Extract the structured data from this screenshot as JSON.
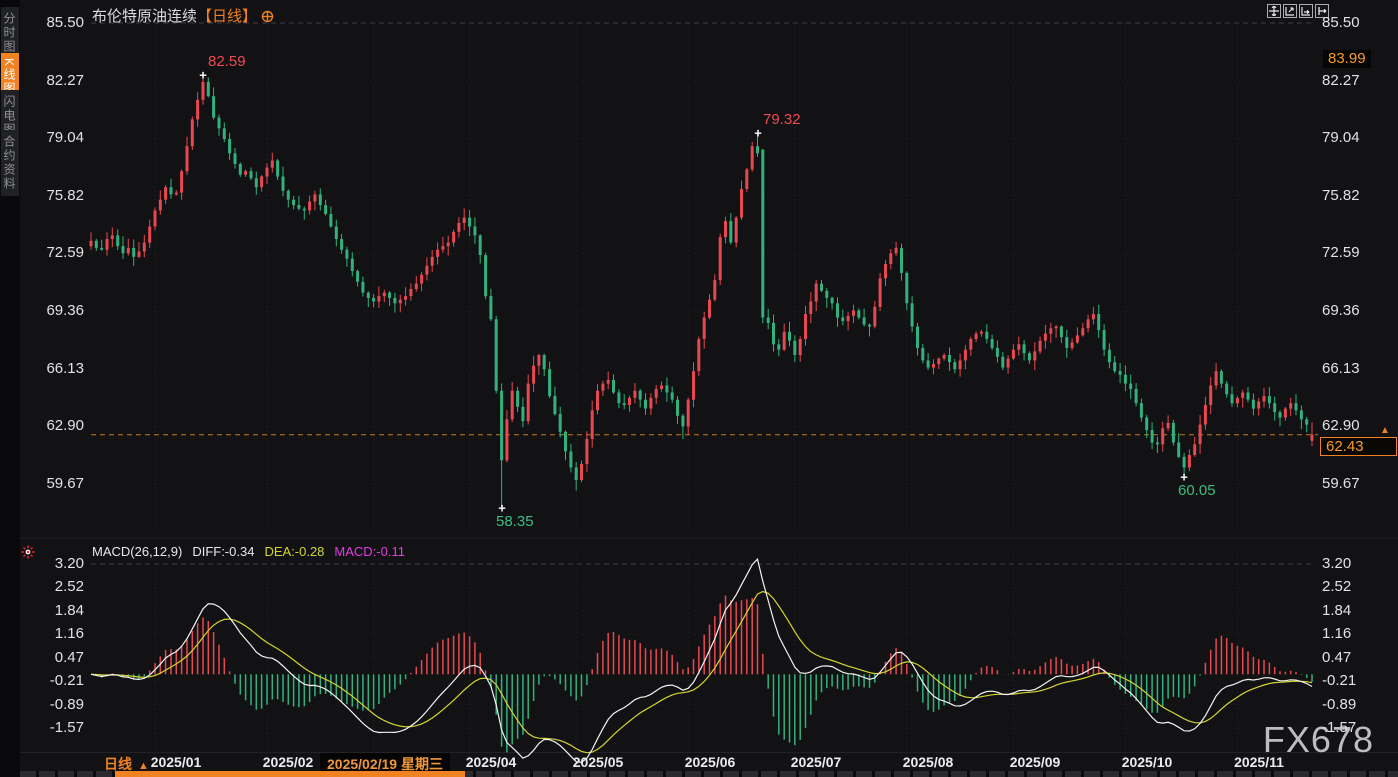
{
  "header": {
    "instrument": "布伦特原油连续",
    "period": "【日线】",
    "gear_icon": "settings-gear"
  },
  "sidebar": {
    "tabs": [
      {
        "label": "分时图",
        "active": false
      },
      {
        "label": "K线图",
        "active": true
      },
      {
        "label": "闪电图",
        "active": false
      },
      {
        "label": "合约资料",
        "active": false
      }
    ]
  },
  "toolbar_icons": [
    "crosshair",
    "zoom-y-axis",
    "zoom-x-axis",
    "pan-right"
  ],
  "macd_header": {
    "title": "MACD(26,12,9)",
    "diff": "DIFF:-0.34",
    "dea": "DEA:-0.28",
    "macd": "MACD:-0.11"
  },
  "badges": {
    "upper": "83.99",
    "last": "62.43",
    "last_arrow": "▲"
  },
  "period_selector": {
    "label": "日线",
    "arrow": "▲"
  },
  "x_axis": {
    "selected_date": "2025/02/19 星期三",
    "labels": [
      {
        "text": "2025/01",
        "day": 16
      },
      {
        "text": "2025/02",
        "day": 37
      },
      {
        "text": "2025/04",
        "day": 75
      },
      {
        "text": "2025/05",
        "day": 95
      },
      {
        "text": "2025/06",
        "day": 116
      },
      {
        "text": "2025/07",
        "day": 136
      },
      {
        "text": "2025/08",
        "day": 157
      },
      {
        "text": "2025/09",
        "day": 177
      },
      {
        "text": "2025/10",
        "day": 198
      },
      {
        "text": "2025/11",
        "day": 219
      }
    ]
  },
  "watermark": "FX678",
  "colors": {
    "up": "#e8484f",
    "down": "#31b27c",
    "accent_orange": "#f08222",
    "diff_line": "#f2f2f2",
    "dea_line": "#d4d431",
    "macd_value": "#e23be2",
    "annotation_high": "#ef4a52",
    "annotation_low": "#3dbd82",
    "last_price_line": "#c27a1a"
  },
  "chart_data": {
    "type": "candlestick",
    "title": "布伦特原油连续 日线",
    "price_axis_ticks": [
      "85.50",
      "82.27",
      "79.04",
      "75.82",
      "72.59",
      "69.36",
      "66.13",
      "62.90",
      "59.67"
    ],
    "macd_axis_ticks": [
      "3.20",
      "2.52",
      "1.84",
      "1.16",
      "0.47",
      "-0.21",
      "-0.89",
      "-1.57"
    ],
    "last_price": 62.43,
    "upper_level": 83.99,
    "macd_params": [
      26,
      12,
      9
    ],
    "macd_last": {
      "diff": -0.34,
      "dea": -0.28,
      "macd": -0.11
    },
    "annotated_points": [
      {
        "day": 21,
        "price": 82.59,
        "label": "82.59",
        "kind": "high"
      },
      {
        "day": 125,
        "price": 79.32,
        "label": "79.32",
        "kind": "high"
      },
      {
        "day": 77,
        "price": 58.35,
        "label": "58.35",
        "kind": "low"
      },
      {
        "day": 205,
        "price": 60.05,
        "label": "60.05",
        "kind": "low"
      }
    ],
    "closes": [
      73.3,
      72.9,
      72.8,
      73.4,
      73.6,
      73.0,
      72.6,
      72.9,
      72.4,
      72.7,
      73.2,
      74.1,
      75.0,
      75.6,
      76.3,
      75.9,
      76.0,
      77.2,
      78.6,
      80.1,
      81.2,
      82.2,
      81.4,
      80.2,
      79.6,
      79.0,
      78.2,
      77.6,
      77.0,
      77.2,
      76.8,
      76.3,
      76.9,
      77.4,
      77.8,
      76.9,
      76.1,
      75.6,
      75.3,
      75.1,
      75.0,
      75.5,
      75.9,
      75.3,
      74.8,
      74.1,
      73.4,
      72.8,
      72.3,
      71.6,
      71.0,
      70.4,
      70.1,
      69.9,
      70.2,
      70.4,
      70.1,
      69.8,
      70.0,
      70.2,
      70.6,
      70.9,
      71.4,
      71.9,
      72.4,
      72.8,
      73.0,
      73.2,
      73.8,
      74.3,
      74.6,
      74.1,
      73.6,
      72.5,
      70.2,
      68.9,
      64.9,
      61.0,
      63.3,
      64.9,
      64.0,
      63.2,
      65.3,
      66.3,
      66.9,
      66.1,
      64.6,
      63.6,
      62.6,
      61.5,
      60.6,
      59.9,
      60.8,
      62.2,
      63.8,
      64.9,
      65.3,
      65.5,
      64.8,
      64.2,
      64.1,
      64.5,
      64.9,
      64.4,
      63.9,
      64.5,
      65.0,
      65.2,
      64.8,
      64.4,
      63.5,
      62.9,
      64.4,
      66.0,
      67.8,
      69.0,
      70.0,
      71.1,
      73.5,
      74.4,
      73.2,
      74.6,
      76.2,
      77.3,
      78.6,
      78.2,
      69.0,
      68.7,
      67.5,
      67.2,
      68.2,
      67.7,
      66.9,
      67.8,
      69.2,
      69.9,
      70.9,
      70.5,
      70.1,
      69.8,
      69.0,
      68.8,
      69.1,
      69.4,
      69.0,
      68.6,
      68.5,
      69.6,
      71.2,
      72.0,
      72.6,
      72.9,
      71.5,
      69.8,
      68.5,
      67.3,
      66.6,
      66.2,
      66.4,
      66.7,
      66.9,
      66.5,
      66.1,
      66.6,
      67.2,
      67.8,
      68.1,
      68.2,
      67.8,
      67.3,
      66.8,
      66.2,
      66.7,
      67.2,
      67.5,
      67.0,
      66.6,
      67.1,
      67.7,
      68.1,
      68.4,
      68.5,
      67.9,
      67.3,
      67.6,
      68.0,
      68.4,
      68.9,
      69.2,
      68.3,
      67.2,
      66.5,
      66.0,
      65.8,
      65.3,
      65.0,
      64.2,
      63.4,
      62.7,
      62.0,
      61.9,
      62.8,
      63.1,
      62.0,
      61.2,
      60.6,
      61.3,
      61.9,
      63.0,
      64.1,
      65.2,
      66.0,
      65.3,
      64.7,
      64.2,
      64.5,
      64.8,
      64.4,
      63.9,
      64.3,
      64.6,
      64.2,
      63.7,
      63.4,
      63.9,
      64.2,
      63.8,
      63.3,
      63.0,
      62.43
    ],
    "overrides": {
      "21": {
        "high": 82.59
      },
      "77": {
        "low": 58.35
      },
      "91": {
        "low": 59.3
      },
      "111": {
        "low": 62.2
      },
      "125": {
        "high": 79.32
      },
      "126": {
        "open": 78.4
      },
      "151": {
        "high": 73.25
      },
      "188": {
        "high": 69.6
      },
      "205": {
        "low": 60.05
      },
      "211": {
        "high": 66.45
      },
      "229": {
        "open": 62.1,
        "low": 61.8
      }
    }
  }
}
